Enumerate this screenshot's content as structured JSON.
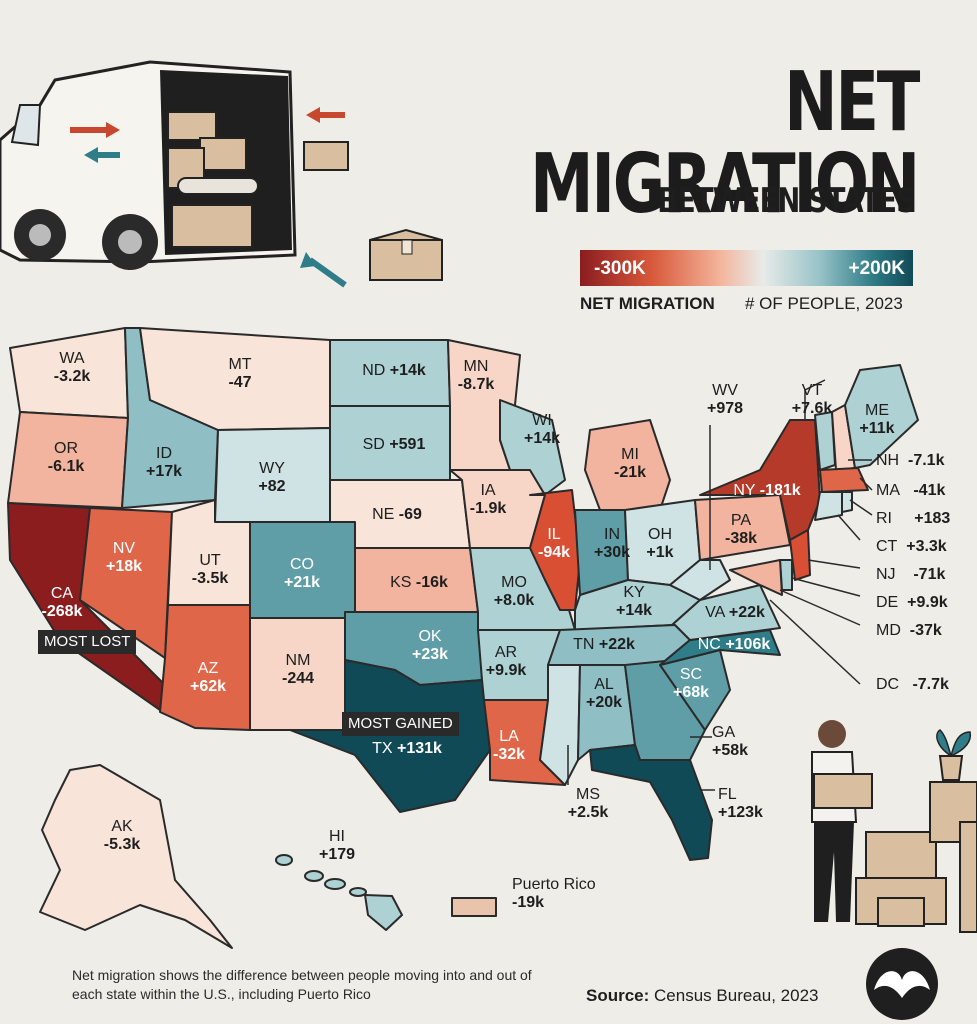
{
  "title": "NET MIGRATION",
  "subtitle": "BETWEEN STATES",
  "legend": {
    "min_label": "-300K",
    "max_label": "+200K",
    "metric_label": "NET MIGRATION",
    "unit_label": "# OF PEOPLE, 2023"
  },
  "colors": {
    "strong_loss": "#8b1d1f",
    "loss": "#e0664a",
    "mild_loss": "#f2b49e",
    "slight_loss": "#f7d6c8",
    "neutral": "#f8e4d8",
    "slight_gain": "#cfe3e4",
    "gain": "#8fbec4",
    "strong_gain": "#2f7d88",
    "max_gain": "#114a57"
  },
  "states": [
    {
      "abbr": "WA",
      "value": "-3.2k"
    },
    {
      "abbr": "OR",
      "value": "-6.1k"
    },
    {
      "abbr": "CA",
      "value": "-268k"
    },
    {
      "abbr": "NV",
      "value": "+18k"
    },
    {
      "abbr": "ID",
      "value": "+17k"
    },
    {
      "abbr": "MT",
      "value": "-47"
    },
    {
      "abbr": "WY",
      "value": "+82"
    },
    {
      "abbr": "UT",
      "value": "-3.5k"
    },
    {
      "abbr": "AZ",
      "value": "+62k"
    },
    {
      "abbr": "CO",
      "value": "+21k"
    },
    {
      "abbr": "NM",
      "value": "-244"
    },
    {
      "abbr": "ND",
      "value": "+14k"
    },
    {
      "abbr": "SD",
      "value": "+591"
    },
    {
      "abbr": "NE",
      "value": "-69"
    },
    {
      "abbr": "KS",
      "value": "-16k"
    },
    {
      "abbr": "OK",
      "value": "+23k"
    },
    {
      "abbr": "TX",
      "value": "+131k"
    },
    {
      "abbr": "MN",
      "value": "-8.7k"
    },
    {
      "abbr": "IA",
      "value": "-1.9k"
    },
    {
      "abbr": "MO",
      "value": "+8.0k"
    },
    {
      "abbr": "AR",
      "value": "+9.9k"
    },
    {
      "abbr": "LA",
      "value": "-32k"
    },
    {
      "abbr": "WI",
      "value": "+14k"
    },
    {
      "abbr": "IL",
      "value": "-94k"
    },
    {
      "abbr": "MI",
      "value": "-21k"
    },
    {
      "abbr": "IN",
      "value": "+30k"
    },
    {
      "abbr": "OH",
      "value": "+1k"
    },
    {
      "abbr": "KY",
      "value": "+14k"
    },
    {
      "abbr": "TN",
      "value": "+22k"
    },
    {
      "abbr": "MS",
      "value": "+2.5k"
    },
    {
      "abbr": "AL",
      "value": "+20k"
    },
    {
      "abbr": "GA",
      "value": "+58k"
    },
    {
      "abbr": "FL",
      "value": "+123k"
    },
    {
      "abbr": "SC",
      "value": "+68k"
    },
    {
      "abbr": "NC",
      "value": "+106k"
    },
    {
      "abbr": "VA",
      "value": "+22k"
    },
    {
      "abbr": "WV",
      "value": "+978"
    },
    {
      "abbr": "PA",
      "value": "-38k"
    },
    {
      "abbr": "NY",
      "value": "-181k"
    },
    {
      "abbr": "VT",
      "value": "+7.6k"
    },
    {
      "abbr": "ME",
      "value": "+11k"
    },
    {
      "abbr": "NH",
      "value": "-7.1k"
    },
    {
      "abbr": "MA",
      "value": "-41k"
    },
    {
      "abbr": "RI",
      "value": "+183"
    },
    {
      "abbr": "CT",
      "value": "+3.3k"
    },
    {
      "abbr": "NJ",
      "value": "-71k"
    },
    {
      "abbr": "DE",
      "value": "+9.9k"
    },
    {
      "abbr": "MD",
      "value": "-37k"
    },
    {
      "abbr": "DC",
      "value": "-7.7k"
    },
    {
      "abbr": "AK",
      "value": "-5.3k"
    },
    {
      "abbr": "HI",
      "value": "+179"
    }
  ],
  "puerto_rico": {
    "name": "Puerto Rico",
    "value": "-19k"
  },
  "callouts": {
    "most_lost": "MOST LOST",
    "most_gained": "MOST GAINED"
  },
  "footnote": "Net migration shows the difference between people moving into and out of each state within the U.S., including Puerto Rico",
  "source": {
    "label": "Source:",
    "text": "Census Bureau, 2023"
  },
  "illustrations": [
    "moving-van-icon",
    "cardboard-box-icon",
    "arrow-icon",
    "person-carrying-box-icon",
    "potted-plant-icon",
    "brand-logo-icon"
  ]
}
